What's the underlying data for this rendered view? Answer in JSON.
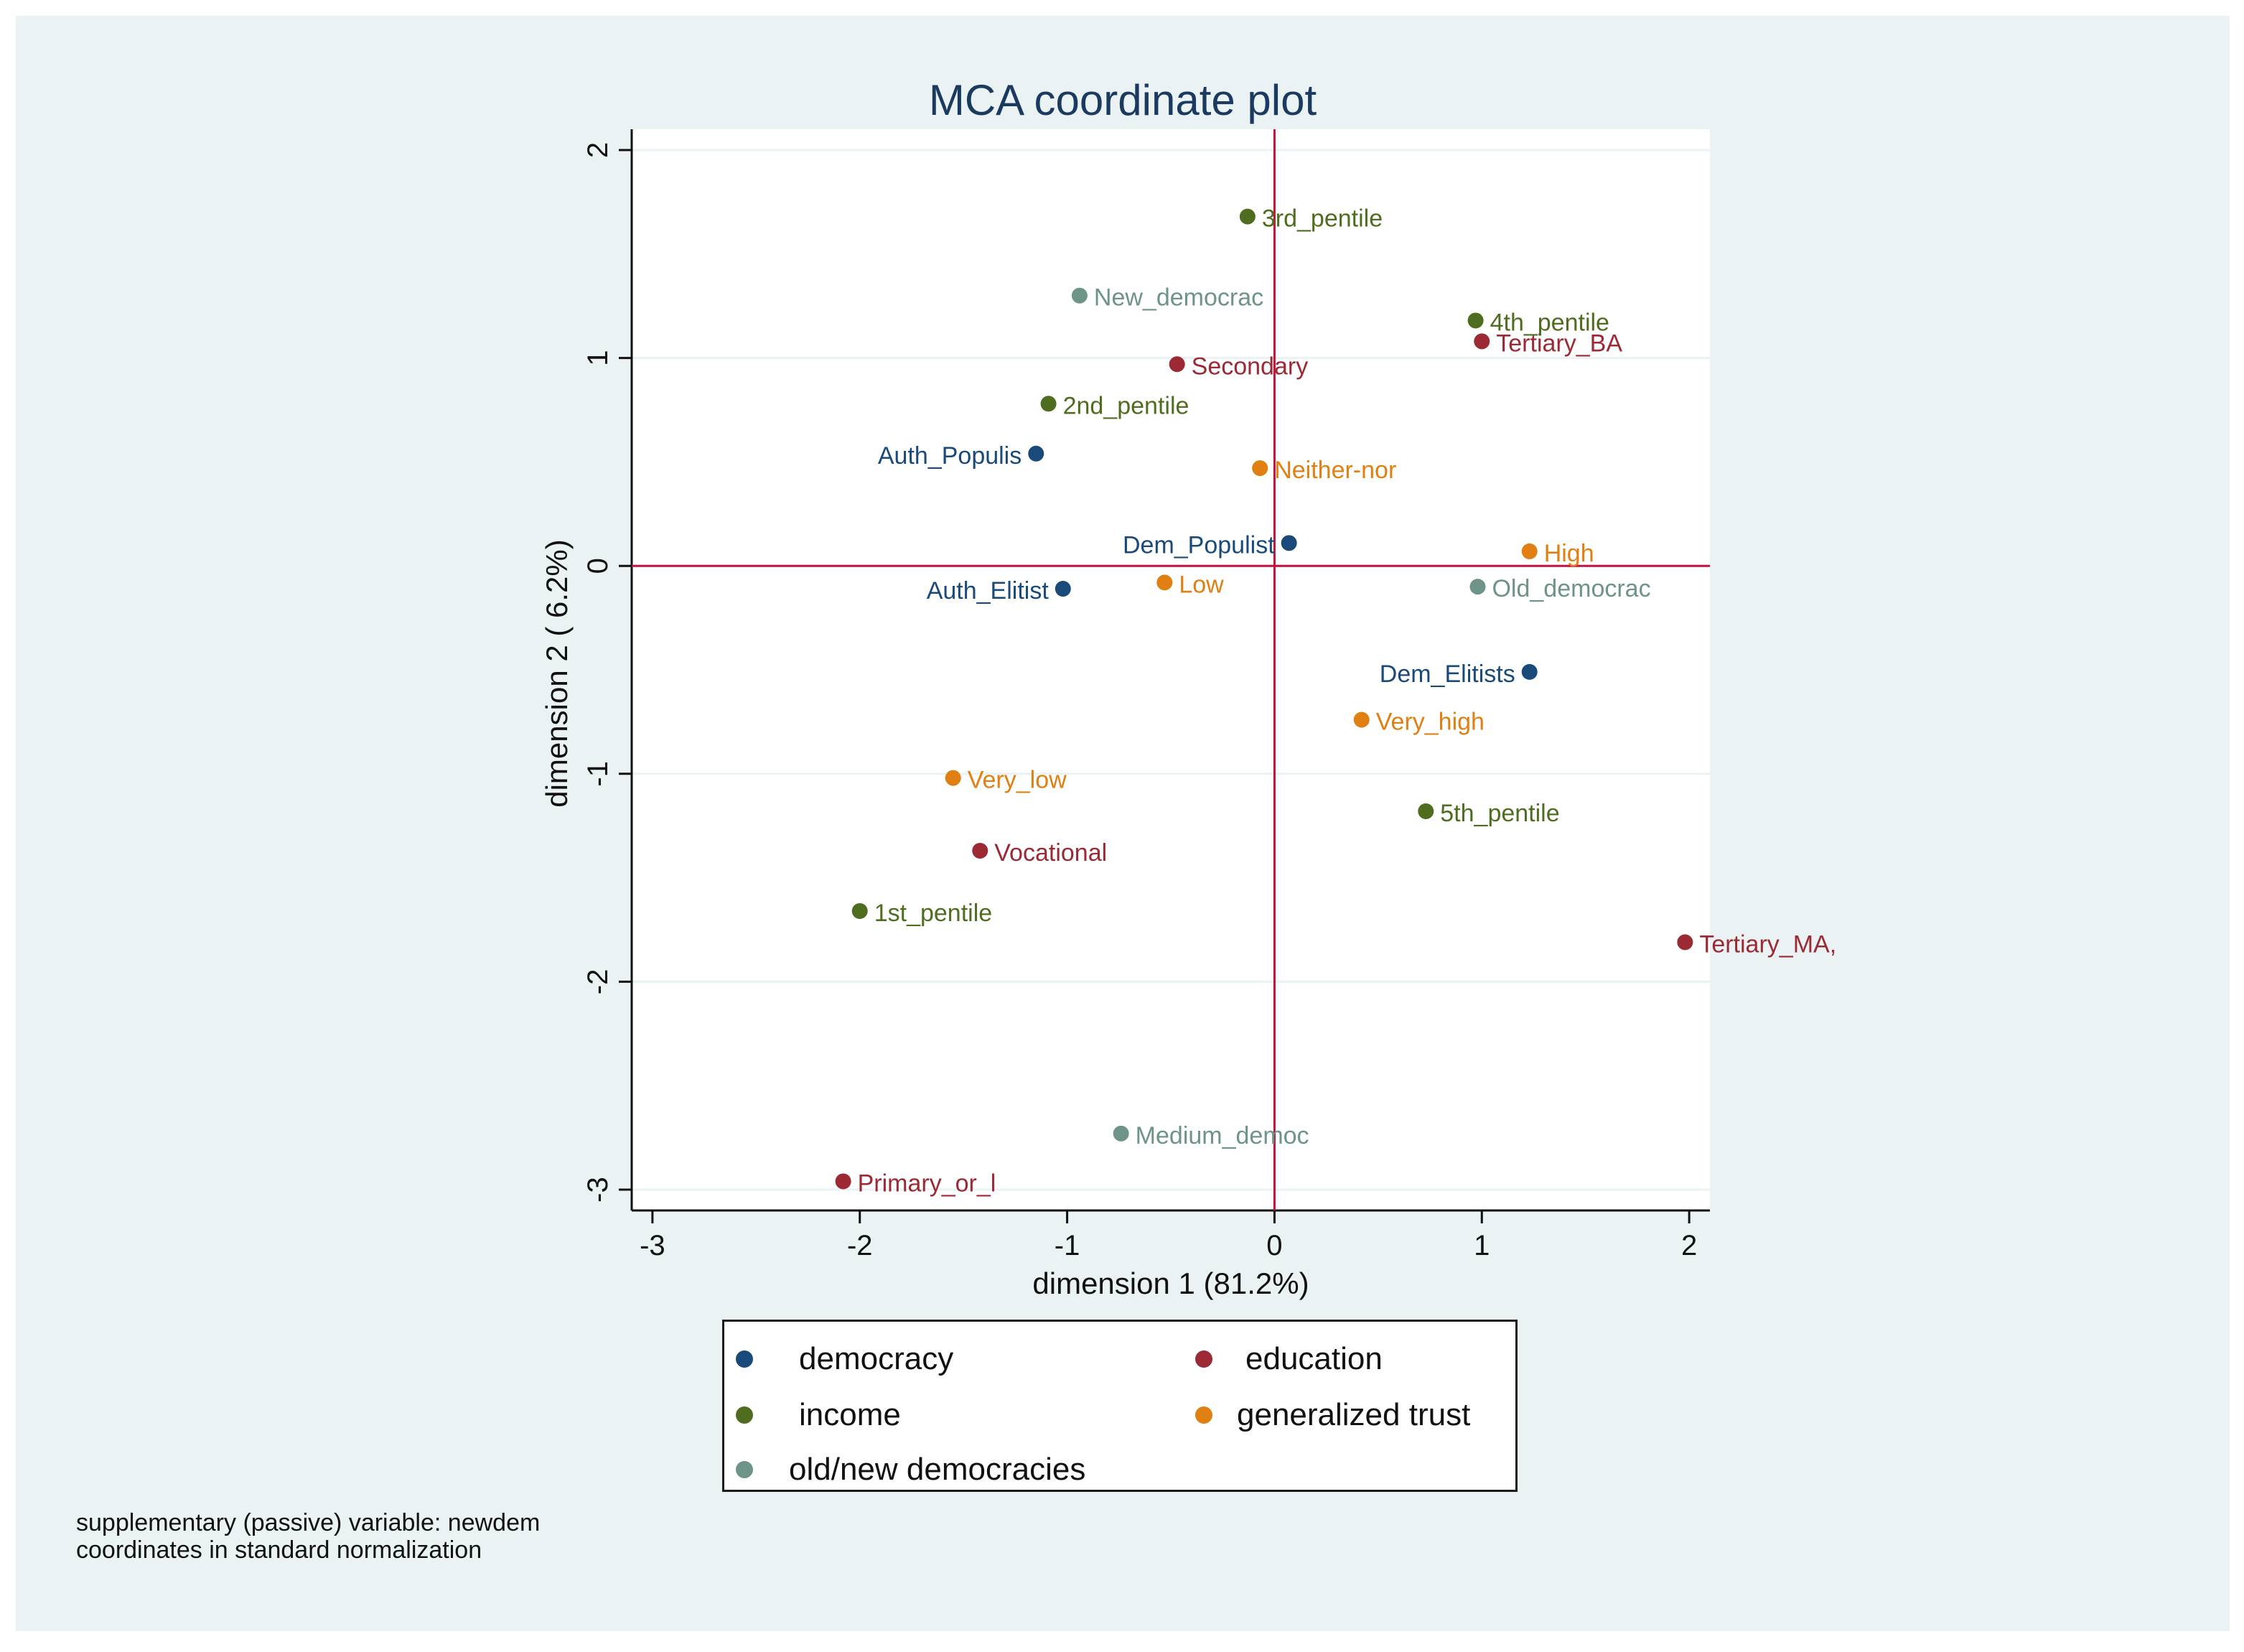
{
  "chart_data": {
    "type": "scatter",
    "title": "MCA coordinate plot",
    "xlabel": "dimension 1 (81.2%)",
    "ylabel": "dimension 2 ( 6.2%)",
    "xlim": [
      -3.1,
      2.1
    ],
    "ylim": [
      -3.1,
      2.1
    ],
    "xticks": [
      -3,
      -2,
      -1,
      0,
      1,
      2
    ],
    "yticks": [
      -3,
      -2,
      -1,
      0,
      1,
      2
    ],
    "grid": true,
    "reference_lines": {
      "x": 0,
      "y": 0,
      "color": "#c0143c"
    },
    "series": [
      {
        "name": "democracy",
        "color": "#1a4a7a",
        "points": [
          {
            "label": "Auth_Populis",
            "x": -1.15,
            "y": 0.54,
            "label_side": "left"
          },
          {
            "label": "Dem_Populist",
            "x": 0.07,
            "y": 0.11,
            "label_side": "left"
          },
          {
            "label": "Auth_Elitist",
            "x": -1.02,
            "y": -0.11,
            "label_side": "left"
          },
          {
            "label": "Dem_Elitists",
            "x": 1.23,
            "y": -0.51,
            "label_side": "left"
          }
        ]
      },
      {
        "name": "education",
        "color": "#9b2a35",
        "points": [
          {
            "label": "Tertiary_BA",
            "x": 1.0,
            "y": 1.08,
            "label_side": "right"
          },
          {
            "label": "Secondary",
            "x": -0.47,
            "y": 0.97,
            "label_side": "right"
          },
          {
            "label": "Vocational",
            "x": -1.42,
            "y": -1.37,
            "label_side": "right"
          },
          {
            "label": "Tertiary_MA,",
            "x": 1.98,
            "y": -1.81,
            "label_side": "right"
          },
          {
            "label": "Primary_or_l",
            "x": -2.08,
            "y": -2.96,
            "label_side": "right"
          }
        ]
      },
      {
        "name": "income",
        "color": "#4f6d1f",
        "points": [
          {
            "label": "3rd_pentile",
            "x": -0.13,
            "y": 1.68,
            "label_side": "right"
          },
          {
            "label": "4th_pentile",
            "x": 0.97,
            "y": 1.18,
            "label_side": "right"
          },
          {
            "label": "2nd_pentile",
            "x": -1.09,
            "y": 0.78,
            "label_side": "right"
          },
          {
            "label": "5th_pentile",
            "x": 0.73,
            "y": -1.18,
            "label_side": "right"
          },
          {
            "label": "1st_pentile",
            "x": -2.0,
            "y": -1.66,
            "label_side": "right"
          }
        ]
      },
      {
        "name": "generalized trust",
        "color": "#e07f12",
        "points": [
          {
            "label": "Neither-nor",
            "x": -0.07,
            "y": 0.47,
            "label_side": "right"
          },
          {
            "label": "High",
            "x": 1.23,
            "y": 0.07,
            "label_side": "right"
          },
          {
            "label": "Low",
            "x": -0.53,
            "y": -0.08,
            "label_side": "right"
          },
          {
            "label": "Very_high",
            "x": 0.42,
            "y": -0.74,
            "label_side": "right"
          },
          {
            "label": "Very_low",
            "x": -1.55,
            "y": -1.02,
            "label_side": "right"
          }
        ]
      },
      {
        "name": "old/new democracies",
        "color": "#6e9389",
        "points": [
          {
            "label": "New_democrac",
            "x": -0.94,
            "y": 1.3,
            "label_side": "right"
          },
          {
            "label": "Old_democrac",
            "x": 0.98,
            "y": -0.1,
            "label_side": "right"
          },
          {
            "label": "Medium_democ",
            "x": -0.74,
            "y": -2.73,
            "label_side": "right"
          }
        ]
      }
    ],
    "legend": {
      "placement": "bottom",
      "entries": [
        {
          "label": "democracy",
          "color": "#1a4a7a"
        },
        {
          "label": "education",
          "color": "#9b2a35"
        },
        {
          "label": "income",
          "color": "#4f6d1f"
        },
        {
          "label": "generalized trust",
          "color": "#e07f12"
        },
        {
          "label": "old/new democracies",
          "color": "#6e9389"
        }
      ]
    }
  },
  "note": {
    "line1": "supplementary (passive) variable: newdem",
    "line2": "coordinates in standard normalization"
  }
}
